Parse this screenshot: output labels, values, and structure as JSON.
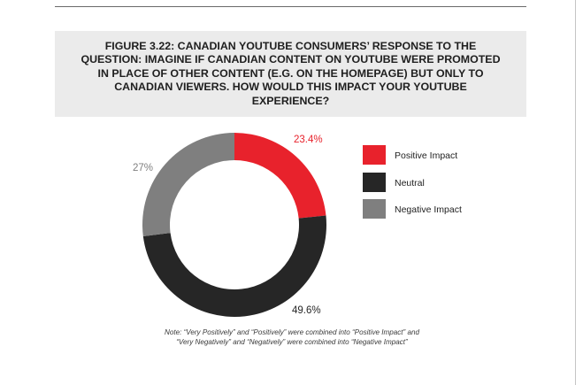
{
  "chart_data": {
    "type": "pie",
    "variant": "donut",
    "title": "FIGURE 3.22: CANADIAN YOUTUBE CONSUMERS’ RESPONSE TO THE QUESTION: IMAGINE IF CANADIAN CONTENT ON YOUTUBE WERE PROMOTED IN PLACE OF OTHER CONTENT (E.G. ON THE HOMEPAGE) BUT ONLY TO CANADIAN VIEWERS. HOW WOULD THIS IMPACT YOUR YOUTUBE EXPERIENCE?",
    "categories": [
      "Positive Impact",
      "Neutral",
      "Negative Impact"
    ],
    "values": [
      23.4,
      49.6,
      27
    ],
    "data_labels": [
      "23.4%",
      "49.6%",
      "27%"
    ],
    "colors": [
      "#e8222c",
      "#262626",
      "#7f7f7f"
    ],
    "label_colors": [
      "#e8222c",
      "#262626",
      "#7f7f7f"
    ],
    "legend_position": "right",
    "start_angle": "12 o'clock, clockwise"
  },
  "note": {
    "line1": "Note: “Very Positively” and “Positively” were combined into “Positive Impact” and",
    "line2": "“Very Negatively” and “Negatively” were combined into “Negative Impact”"
  }
}
